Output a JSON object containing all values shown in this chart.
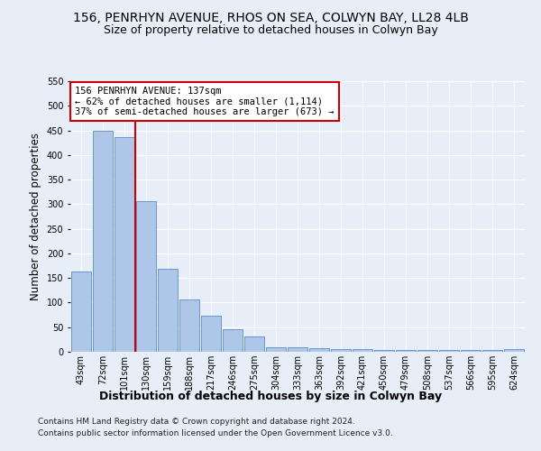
{
  "title1": "156, PENRHYN AVENUE, RHOS ON SEA, COLWYN BAY, LL28 4LB",
  "title2": "Size of property relative to detached houses in Colwyn Bay",
  "xlabel": "Distribution of detached houses by size in Colwyn Bay",
  "ylabel": "Number of detached properties",
  "categories": [
    "43sqm",
    "72sqm",
    "101sqm",
    "130sqm",
    "159sqm",
    "188sqm",
    "217sqm",
    "246sqm",
    "275sqm",
    "304sqm",
    "333sqm",
    "363sqm",
    "392sqm",
    "421sqm",
    "450sqm",
    "479sqm",
    "508sqm",
    "537sqm",
    "566sqm",
    "595sqm",
    "624sqm"
  ],
  "values": [
    163,
    450,
    437,
    306,
    168,
    106,
    74,
    45,
    32,
    10,
    10,
    8,
    5,
    5,
    4,
    3,
    3,
    3,
    3,
    3,
    5
  ],
  "bar_color": "#aec6e8",
  "bar_edge_color": "#5b8ec4",
  "vline_color": "#cc0000",
  "annotation_text": "156 PENRHYN AVENUE: 137sqm\n← 62% of detached houses are smaller (1,114)\n37% of semi-detached houses are larger (673) →",
  "annotation_box_facecolor": "#ffffff",
  "annotation_box_edgecolor": "#cc0000",
  "ylim": [
    0,
    550
  ],
  "yticks": [
    0,
    50,
    100,
    150,
    200,
    250,
    300,
    350,
    400,
    450,
    500,
    550
  ],
  "footer1": "Contains HM Land Registry data © Crown copyright and database right 2024.",
  "footer2": "Contains public sector information licensed under the Open Government Licence v3.0.",
  "bg_color": "#e8eef8",
  "title_fontsize": 10,
  "subtitle_fontsize": 9,
  "tick_fontsize": 7,
  "ylabel_fontsize": 8.5,
  "xlabel_fontsize": 9,
  "footer_fontsize": 6.5,
  "annot_fontsize": 7.5,
  "vline_x_index": 3
}
